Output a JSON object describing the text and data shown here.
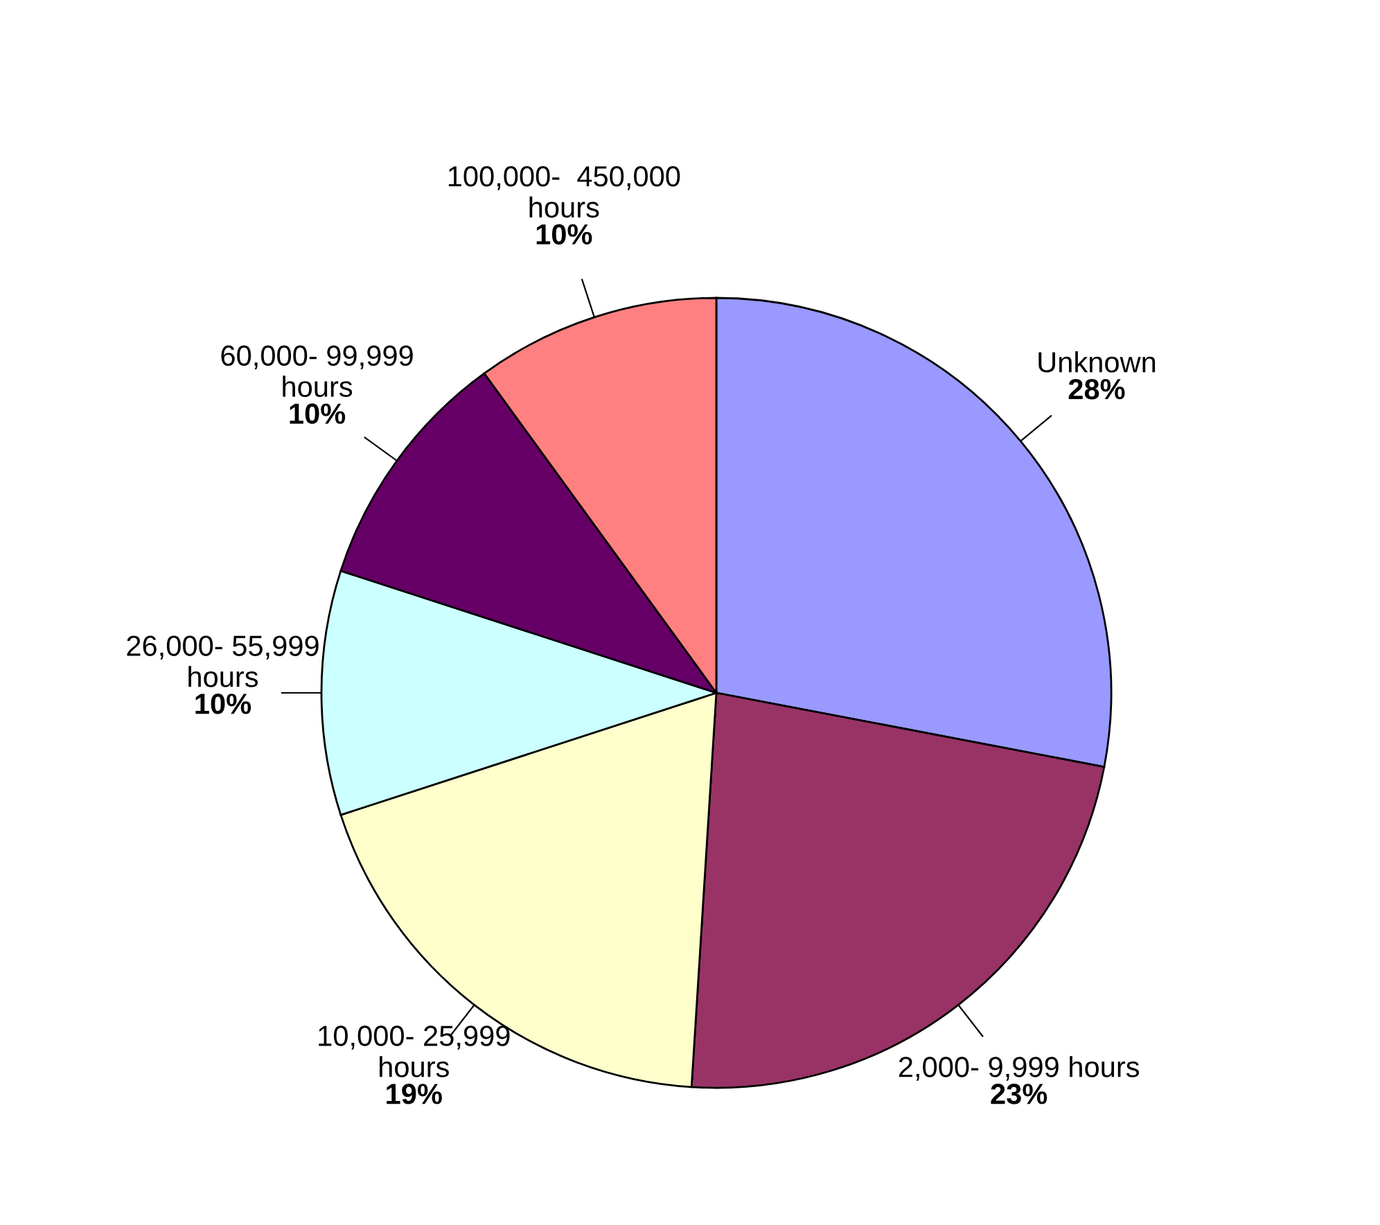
{
  "chart_data": {
    "type": "pie",
    "categories": [
      "Unknown",
      "2,000- 9,999 hours",
      "10,000- 25,999\nhours",
      "26,000- 55,999\nhours",
      "60,000- 99,999\nhours",
      "100,000-  450,000\nhours"
    ],
    "values": [
      28,
      23,
      19,
      10,
      10,
      10
    ],
    "colors": [
      "#9999ff",
      "#993366",
      "#ffffcc",
      "#ccffff",
      "#660066",
      "#ff8080"
    ],
    "value_labels": [
      "28%",
      "23%",
      "19%",
      "10%",
      "10%",
      "10%"
    ]
  }
}
